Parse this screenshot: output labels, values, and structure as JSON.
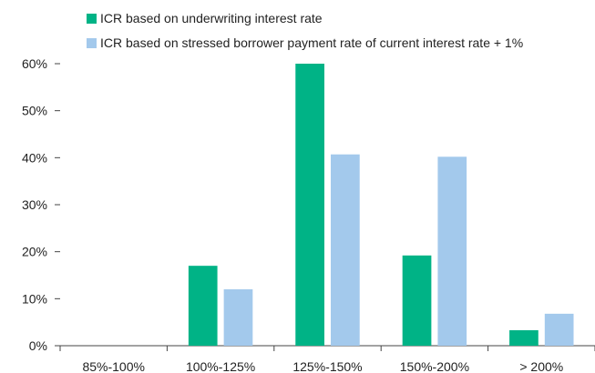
{
  "chart_data": {
    "type": "bar",
    "title": "",
    "xlabel": "",
    "ylabel": "",
    "categories": [
      "85%-100%",
      "100%-125%",
      "125%-150%",
      "150%-200%",
      "> 200%"
    ],
    "series": [
      {
        "name": "ICR based on underwriting interest rate",
        "color": "#00b386",
        "values": [
          0,
          17,
          60,
          19.2,
          3.3
        ]
      },
      {
        "name": "ICR based on stressed borrower payment rate of current interest rate + 1%",
        "color": "#a3c9ec",
        "values": [
          0,
          12,
          40.7,
          40.2,
          6.8
        ]
      }
    ],
    "ylim": [
      0,
      60
    ],
    "yticks": [
      "0%",
      "10%",
      "20%",
      "30%",
      "40%",
      "50%",
      "60%"
    ],
    "grid": false,
    "legend": "top-left"
  }
}
